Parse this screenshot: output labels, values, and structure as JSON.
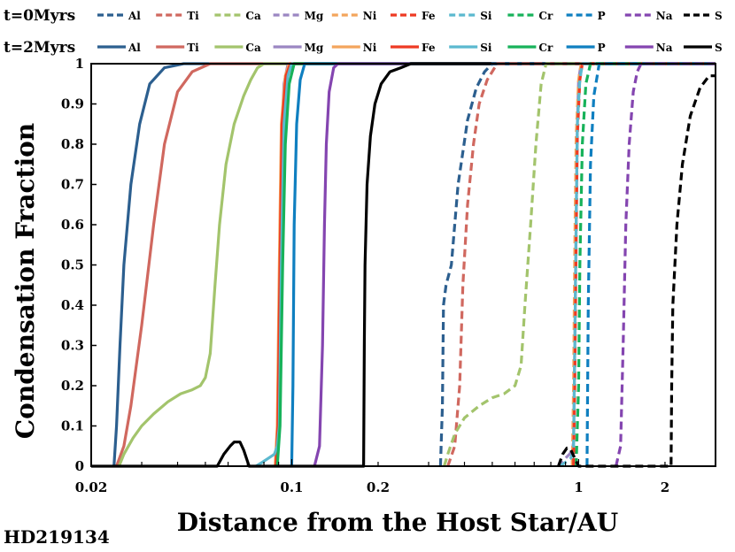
{
  "chart_data": {
    "type": "line",
    "title": "",
    "xlabel": "Distance from the Host Star/AU",
    "ylabel": "Condensation Fraction",
    "footnote": "HD219134",
    "xscale": "log",
    "xlim": [
      0.02,
      3.0
    ],
    "ylim": [
      0,
      1
    ],
    "xticks": [
      0.02,
      0.1,
      0.2,
      1,
      2
    ],
    "xtick_labels": [
      "0.02",
      "0.1",
      "0.2",
      "1",
      "2"
    ],
    "yticks": [
      0,
      0.1,
      0.2,
      0.3,
      0.4,
      0.5,
      0.6,
      0.7,
      0.8,
      0.9,
      1
    ],
    "ytick_labels": [
      "0",
      "0.1",
      "0.2",
      "0.3",
      "0.4",
      "0.5",
      "0.6",
      "0.7",
      "0.8",
      "0.9",
      "1"
    ],
    "grid": false,
    "legend_position": "top",
    "legend_groups": [
      {
        "label": "t=0Myrs",
        "style": "dashed"
      },
      {
        "label": "t=2Myrs",
        "style": "solid"
      }
    ],
    "elements": [
      {
        "name": "Al",
        "color": "#2c5f8f"
      },
      {
        "name": "Ti",
        "color": "#d0685f"
      },
      {
        "name": "Ca",
        "color": "#a3c46c"
      },
      {
        "name": "Mg",
        "color": "#9b86c2"
      },
      {
        "name": "Ni",
        "color": "#f3a55c"
      },
      {
        "name": "Fe",
        "color": "#ee3a23"
      },
      {
        "name": "Si",
        "color": "#5bb9cf"
      },
      {
        "name": "Cr",
        "color": "#17b25a"
      },
      {
        "name": "P",
        "color": "#0f7fc0"
      },
      {
        "name": "Na",
        "color": "#8445b0"
      },
      {
        "name": "S",
        "color": "#000000"
      }
    ],
    "series": [
      {
        "element": "Al",
        "time": "t=2Myrs",
        "style": "solid",
        "points": [
          [
            0.024,
            0
          ],
          [
            0.0245,
            0.1
          ],
          [
            0.0252,
            0.3
          ],
          [
            0.026,
            0.5
          ],
          [
            0.0275,
            0.7
          ],
          [
            0.0295,
            0.85
          ],
          [
            0.032,
            0.95
          ],
          [
            0.036,
            0.99
          ],
          [
            0.042,
            1
          ],
          [
            3.0,
            1
          ]
        ]
      },
      {
        "element": "Ti",
        "time": "t=2Myrs",
        "style": "solid",
        "points": [
          [
            0.0245,
            0
          ],
          [
            0.026,
            0.05
          ],
          [
            0.0275,
            0.15
          ],
          [
            0.03,
            0.35
          ],
          [
            0.033,
            0.6
          ],
          [
            0.036,
            0.8
          ],
          [
            0.04,
            0.93
          ],
          [
            0.045,
            0.98
          ],
          [
            0.052,
            1
          ],
          [
            3.0,
            1
          ]
        ]
      },
      {
        "element": "Ca",
        "time": "t=2Myrs",
        "style": "solid",
        "points": [
          [
            0.025,
            0
          ],
          [
            0.026,
            0.03
          ],
          [
            0.028,
            0.07
          ],
          [
            0.03,
            0.1
          ],
          [
            0.033,
            0.13
          ],
          [
            0.037,
            0.16
          ],
          [
            0.041,
            0.18
          ],
          [
            0.045,
            0.19
          ],
          [
            0.048,
            0.2
          ],
          [
            0.05,
            0.22
          ],
          [
            0.052,
            0.28
          ],
          [
            0.054,
            0.45
          ],
          [
            0.056,
            0.6
          ],
          [
            0.059,
            0.75
          ],
          [
            0.063,
            0.85
          ],
          [
            0.068,
            0.92
          ],
          [
            0.072,
            0.96
          ],
          [
            0.076,
            0.99
          ],
          [
            0.08,
            1
          ],
          [
            3.0,
            1
          ]
        ]
      },
      {
        "element": "Mg",
        "time": "t=2Myrs",
        "style": "solid",
        "points": [
          [
            0.088,
            0
          ],
          [
            0.09,
            0.1
          ],
          [
            0.091,
            0.5
          ],
          [
            0.092,
            0.8
          ],
          [
            0.094,
            0.95
          ],
          [
            0.097,
            1
          ],
          [
            3.0,
            1
          ]
        ]
      },
      {
        "element": "Ni",
        "time": "t=2Myrs",
        "style": "solid",
        "points": [
          [
            0.0875,
            0
          ],
          [
            0.089,
            0.1
          ],
          [
            0.0905,
            0.5
          ],
          [
            0.092,
            0.85
          ],
          [
            0.095,
            0.97
          ],
          [
            0.098,
            1
          ],
          [
            3.0,
            1
          ]
        ]
      },
      {
        "element": "Fe",
        "time": "t=2Myrs",
        "style": "solid",
        "points": [
          [
            0.088,
            0
          ],
          [
            0.0895,
            0.1
          ],
          [
            0.091,
            0.5
          ],
          [
            0.0925,
            0.85
          ],
          [
            0.0955,
            0.97
          ],
          [
            0.099,
            1
          ],
          [
            3.0,
            1
          ]
        ]
      },
      {
        "element": "Si",
        "time": "t=2Myrs",
        "style": "solid",
        "points": [
          [
            0.075,
            0
          ],
          [
            0.079,
            0.01
          ],
          [
            0.083,
            0.02
          ],
          [
            0.087,
            0.03
          ],
          [
            0.089,
            0.05
          ],
          [
            0.0905,
            0.1
          ],
          [
            0.092,
            0.5
          ],
          [
            0.094,
            0.85
          ],
          [
            0.097,
            0.97
          ],
          [
            0.1,
            1
          ],
          [
            3.0,
            1
          ]
        ]
      },
      {
        "element": "Cr",
        "time": "t=2Myrs",
        "style": "solid",
        "points": [
          [
            0.089,
            0
          ],
          [
            0.091,
            0.1
          ],
          [
            0.093,
            0.5
          ],
          [
            0.095,
            0.8
          ],
          [
            0.098,
            0.95
          ],
          [
            0.102,
            1
          ],
          [
            3.0,
            1
          ]
        ]
      },
      {
        "element": "P",
        "time": "t=2Myrs",
        "style": "solid",
        "points": [
          [
            0.1,
            0
          ],
          [
            0.101,
            0.2
          ],
          [
            0.102,
            0.6
          ],
          [
            0.104,
            0.85
          ],
          [
            0.107,
            0.96
          ],
          [
            0.111,
            1
          ],
          [
            3.0,
            1
          ]
        ]
      },
      {
        "element": "Na",
        "time": "t=2Myrs",
        "style": "solid",
        "points": [
          [
            0.12,
            0
          ],
          [
            0.125,
            0.05
          ],
          [
            0.128,
            0.3
          ],
          [
            0.13,
            0.6
          ],
          [
            0.132,
            0.8
          ],
          [
            0.135,
            0.93
          ],
          [
            0.14,
            0.99
          ],
          [
            0.145,
            1
          ],
          [
            3.0,
            1
          ]
        ]
      },
      {
        "element": "S",
        "time": "t=2Myrs",
        "style": "solid",
        "points": [
          [
            0.02,
            0
          ],
          [
            0.055,
            0
          ],
          [
            0.058,
            0.03
          ],
          [
            0.061,
            0.05
          ],
          [
            0.063,
            0.06
          ],
          [
            0.066,
            0.06
          ],
          [
            0.068,
            0.04
          ],
          [
            0.071,
            0
          ],
          [
            0.178,
            0
          ],
          [
            0.179,
            0.3
          ],
          [
            0.18,
            0.5
          ],
          [
            0.183,
            0.7
          ],
          [
            0.188,
            0.82
          ],
          [
            0.195,
            0.9
          ],
          [
            0.205,
            0.95
          ],
          [
            0.22,
            0.98
          ],
          [
            0.24,
            0.99
          ],
          [
            0.26,
            1
          ],
          [
            3.0,
            1
          ]
        ]
      },
      {
        "element": "Al",
        "time": "t=0Myrs",
        "style": "dashed",
        "points": [
          [
            0.33,
            0
          ],
          [
            0.335,
            0.15
          ],
          [
            0.338,
            0.4
          ],
          [
            0.345,
            0.45
          ],
          [
            0.36,
            0.5
          ],
          [
            0.38,
            0.7
          ],
          [
            0.41,
            0.86
          ],
          [
            0.44,
            0.94
          ],
          [
            0.47,
            0.98
          ],
          [
            0.5,
            1
          ],
          [
            3.0,
            1
          ]
        ]
      },
      {
        "element": "Ti",
        "time": "t=0Myrs",
        "style": "dashed",
        "points": [
          [
            0.35,
            0
          ],
          [
            0.37,
            0.05
          ],
          [
            0.385,
            0.2
          ],
          [
            0.395,
            0.45
          ],
          [
            0.41,
            0.65
          ],
          [
            0.43,
            0.8
          ],
          [
            0.45,
            0.9
          ],
          [
            0.48,
            0.96
          ],
          [
            0.52,
            1
          ],
          [
            3.0,
            1
          ]
        ]
      },
      {
        "element": "Ca",
        "time": "t=0Myrs",
        "style": "dashed",
        "points": [
          [
            0.34,
            0
          ],
          [
            0.35,
            0.03
          ],
          [
            0.37,
            0.08
          ],
          [
            0.4,
            0.12
          ],
          [
            0.45,
            0.15
          ],
          [
            0.5,
            0.17
          ],
          [
            0.55,
            0.18
          ],
          [
            0.6,
            0.2
          ],
          [
            0.63,
            0.25
          ],
          [
            0.65,
            0.4
          ],
          [
            0.68,
            0.6
          ],
          [
            0.71,
            0.8
          ],
          [
            0.74,
            0.95
          ],
          [
            0.77,
            1
          ],
          [
            3.0,
            1
          ]
        ]
      },
      {
        "element": "Mg",
        "time": "t=0Myrs",
        "style": "dashed",
        "points": [
          [
            0.85,
            0
          ],
          [
            0.86,
            0.01
          ],
          [
            0.88,
            0.01
          ],
          [
            0.9,
            0.02
          ],
          [
            0.93,
            0.03
          ],
          [
            0.95,
            0.04
          ],
          [
            0.96,
            0.06
          ],
          [
            0.97,
            0.3
          ],
          [
            0.98,
            0.6
          ],
          [
            0.99,
            0.85
          ],
          [
            1.0,
            0.96
          ],
          [
            1.02,
            1
          ],
          [
            3.0,
            1
          ]
        ]
      },
      {
        "element": "Ni",
        "time": "t=0Myrs",
        "style": "dashed",
        "points": [
          [
            0.95,
            0
          ],
          [
            0.96,
            0.2
          ],
          [
            0.97,
            0.55
          ],
          [
            0.98,
            0.82
          ],
          [
            1.0,
            0.96
          ],
          [
            1.02,
            1
          ],
          [
            3.0,
            1
          ]
        ]
      },
      {
        "element": "Fe",
        "time": "t=0Myrs",
        "style": "dashed",
        "points": [
          [
            0.96,
            0
          ],
          [
            0.97,
            0.2
          ],
          [
            0.98,
            0.55
          ],
          [
            0.99,
            0.82
          ],
          [
            1.01,
            0.96
          ],
          [
            1.03,
            1
          ],
          [
            3.0,
            1
          ]
        ]
      },
      {
        "element": "Si",
        "time": "t=0Myrs",
        "style": "dashed",
        "points": [
          [
            0.86,
            0
          ],
          [
            0.9,
            0.01
          ],
          [
            0.94,
            0.02
          ],
          [
            0.96,
            0.04
          ],
          [
            0.97,
            0.3
          ],
          [
            0.98,
            0.6
          ],
          [
            0.99,
            0.85
          ],
          [
            1.01,
            0.96
          ],
          [
            1.03,
            1
          ],
          [
            3.0,
            1
          ]
        ]
      },
      {
        "element": "Cr",
        "time": "t=0Myrs",
        "style": "dashed",
        "points": [
          [
            0.98,
            0
          ],
          [
            1.0,
            0.2
          ],
          [
            1.01,
            0.5
          ],
          [
            1.03,
            0.8
          ],
          [
            1.06,
            0.95
          ],
          [
            1.1,
            1
          ],
          [
            3.0,
            1
          ]
        ]
      },
      {
        "element": "P",
        "time": "t=0Myrs",
        "style": "dashed",
        "points": [
          [
            1.07,
            0
          ],
          [
            1.08,
            0.4
          ],
          [
            1.1,
            0.75
          ],
          [
            1.13,
            0.92
          ],
          [
            1.18,
            1
          ],
          [
            3.0,
            1
          ]
        ]
      },
      {
        "element": "Na",
        "time": "t=0Myrs",
        "style": "dashed",
        "points": [
          [
            1.35,
            0
          ],
          [
            1.4,
            0.05
          ],
          [
            1.43,
            0.3
          ],
          [
            1.46,
            0.6
          ],
          [
            1.5,
            0.8
          ],
          [
            1.55,
            0.93
          ],
          [
            1.6,
            0.98
          ],
          [
            1.65,
            1
          ],
          [
            3.0,
            1
          ]
        ]
      },
      {
        "element": "S",
        "time": "t=0Myrs",
        "style": "dashed",
        "points": [
          [
            0.85,
            0
          ],
          [
            0.88,
            0.03
          ],
          [
            0.91,
            0.045
          ],
          [
            0.94,
            0.04
          ],
          [
            0.97,
            0.02
          ],
          [
            1.0,
            0
          ],
          [
            2.1,
            0
          ],
          [
            2.11,
            0.2
          ],
          [
            2.13,
            0.4
          ],
          [
            2.2,
            0.6
          ],
          [
            2.3,
            0.75
          ],
          [
            2.45,
            0.87
          ],
          [
            2.65,
            0.94
          ],
          [
            2.85,
            0.97
          ],
          [
            3.0,
            0.97
          ]
        ]
      }
    ]
  }
}
